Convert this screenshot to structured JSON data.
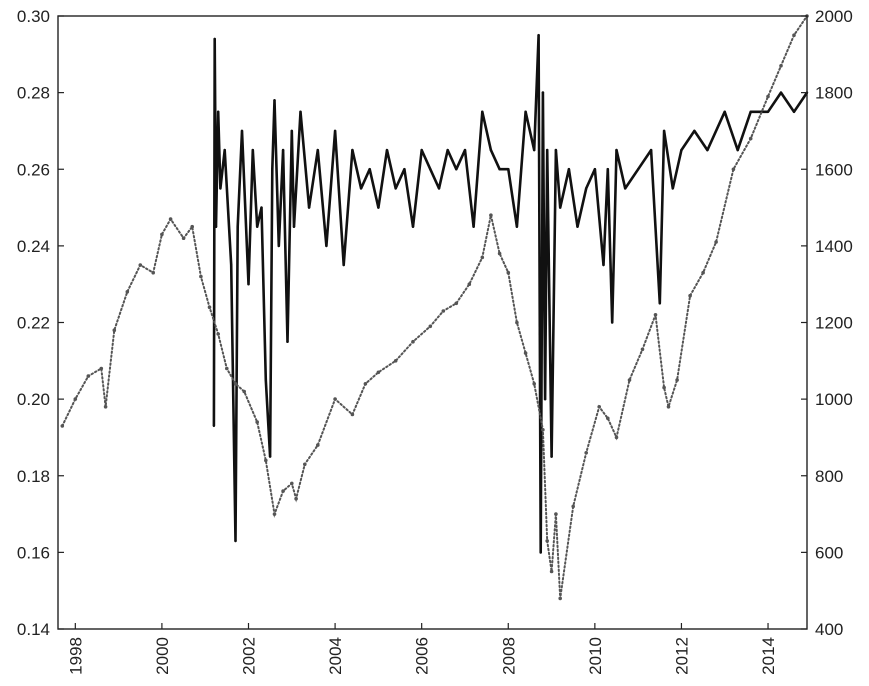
{
  "chart_data": {
    "type": "line",
    "title": "",
    "xlabel": "",
    "ylabel_left": "",
    "ylabel_right": "",
    "xlim": [
      1997.6,
      2014.9
    ],
    "ylim_left": [
      0.14,
      0.3
    ],
    "ylim_right": [
      400,
      2000
    ],
    "x_ticks": [
      1998,
      2000,
      2002,
      2004,
      2006,
      2008,
      2010,
      2012,
      2014
    ],
    "y_ticks_left": [
      0.14,
      0.16,
      0.18,
      0.2,
      0.22,
      0.24,
      0.26,
      0.28,
      0.3
    ],
    "y_ticks_right": [
      400,
      600,
      800,
      1000,
      1200,
      1400,
      1600,
      1800,
      2000
    ],
    "y_tick_labels_left": [
      "0.14",
      "0.16",
      "0.18",
      "0.20",
      "0.22",
      "0.24",
      "0.26",
      "0.28",
      "0.30"
    ],
    "y_tick_labels_right": [
      "400",
      "600",
      "800",
      "1000",
      "1200",
      "1400",
      "1600",
      "1800",
      "2000"
    ],
    "grid": false,
    "legend": "none",
    "series": [
      {
        "axis": "left",
        "style": "solid-line",
        "color": "#111111",
        "x": [
          2001.2,
          2001.22,
          2001.25,
          2001.3,
          2001.35,
          2001.45,
          2001.6,
          2001.7,
          2001.75,
          2001.85,
          2002.0,
          2002.1,
          2002.2,
          2002.3,
          2002.4,
          2002.5,
          2002.55,
          2002.6,
          2002.7,
          2002.8,
          2002.9,
          2003.0,
          2003.05,
          2003.2,
          2003.4,
          2003.6,
          2003.8,
          2004.0,
          2004.2,
          2004.4,
          2004.6,
          2004.8,
          2005.0,
          2005.2,
          2005.4,
          2005.6,
          2005.8,
          2006.0,
          2006.2,
          2006.4,
          2006.6,
          2006.8,
          2007.0,
          2007.2,
          2007.4,
          2007.6,
          2007.8,
          2008.0,
          2008.2,
          2008.4,
          2008.6,
          2008.7,
          2008.75,
          2008.8,
          2008.85,
          2008.9,
          2009.0,
          2009.1,
          2009.2,
          2009.4,
          2009.6,
          2009.8,
          2010.0,
          2010.2,
          2010.3,
          2010.4,
          2010.5,
          2010.7,
          2011.0,
          2011.3,
          2011.5,
          2011.6,
          2011.8,
          2012.0,
          2012.3,
          2012.6,
          2013.0,
          2013.3,
          2013.6,
          2014.0,
          2014.3,
          2014.6,
          2014.9
        ],
        "values": [
          0.193,
          0.294,
          0.245,
          0.275,
          0.255,
          0.265,
          0.235,
          0.163,
          0.245,
          0.27,
          0.23,
          0.265,
          0.245,
          0.25,
          0.205,
          0.185,
          0.26,
          0.278,
          0.24,
          0.265,
          0.215,
          0.27,
          0.245,
          0.275,
          0.25,
          0.265,
          0.24,
          0.27,
          0.235,
          0.265,
          0.255,
          0.26,
          0.25,
          0.265,
          0.255,
          0.26,
          0.245,
          0.265,
          0.26,
          0.255,
          0.265,
          0.26,
          0.265,
          0.245,
          0.275,
          0.265,
          0.26,
          0.26,
          0.245,
          0.275,
          0.265,
          0.295,
          0.16,
          0.28,
          0.2,
          0.265,
          0.185,
          0.265,
          0.25,
          0.26,
          0.245,
          0.255,
          0.26,
          0.235,
          0.26,
          0.22,
          0.265,
          0.255,
          0.26,
          0.265,
          0.225,
          0.27,
          0.255,
          0.265,
          0.27,
          0.265,
          0.275,
          0.265,
          0.275,
          0.275,
          0.28,
          0.275,
          0.28
        ]
      },
      {
        "axis": "right",
        "style": "dotted-markers",
        "color": "#555555",
        "x": [
          1997.7,
          1998.0,
          1998.3,
          1998.6,
          1998.7,
          1998.9,
          1999.2,
          1999.5,
          1999.8,
          2000.0,
          2000.2,
          2000.5,
          2000.7,
          2000.9,
          2001.1,
          2001.3,
          2001.5,
          2001.7,
          2001.9,
          2002.2,
          2002.4,
          2002.6,
          2002.8,
          2003.0,
          2003.1,
          2003.3,
          2003.6,
          2004.0,
          2004.4,
          2004.7,
          2005.0,
          2005.4,
          2005.8,
          2006.2,
          2006.5,
          2006.8,
          2007.1,
          2007.4,
          2007.6,
          2007.8,
          2008.0,
          2008.2,
          2008.4,
          2008.6,
          2008.8,
          2008.9,
          2009.0,
          2009.1,
          2009.2,
          2009.5,
          2009.8,
          2010.1,
          2010.3,
          2010.5,
          2010.8,
          2011.1,
          2011.4,
          2011.6,
          2011.7,
          2011.9,
          2012.2,
          2012.5,
          2012.8,
          2013.2,
          2013.6,
          2014.0,
          2014.3,
          2014.6,
          2014.9
        ],
        "values": [
          930,
          1000,
          1060,
          1080,
          980,
          1180,
          1280,
          1350,
          1330,
          1430,
          1470,
          1420,
          1450,
          1320,
          1240,
          1170,
          1080,
          1040,
          1020,
          940,
          840,
          700,
          760,
          780,
          740,
          830,
          880,
          1000,
          960,
          1040,
          1070,
          1100,
          1150,
          1190,
          1230,
          1250,
          1300,
          1370,
          1480,
          1380,
          1330,
          1200,
          1120,
          1040,
          920,
          630,
          550,
          700,
          480,
          720,
          860,
          980,
          950,
          900,
          1050,
          1130,
          1220,
          1030,
          980,
          1050,
          1270,
          1330,
          1410,
          1600,
          1680,
          1790,
          1870,
          1950,
          2000
        ]
      }
    ]
  }
}
